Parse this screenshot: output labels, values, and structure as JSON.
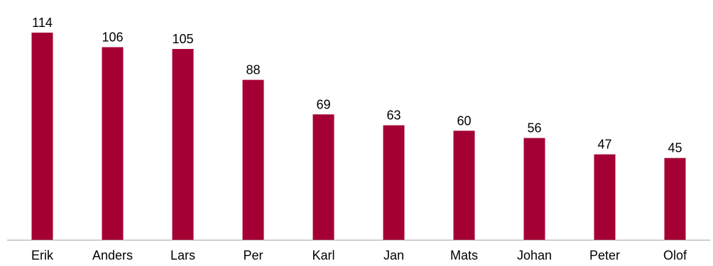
{
  "chart_data": {
    "type": "bar",
    "categories": [
      "Erik",
      "Anders",
      "Lars",
      "Per",
      "Karl",
      "Jan",
      "Mats",
      "Johan",
      "Peter",
      "Olof"
    ],
    "values": [
      114,
      106,
      105,
      88,
      69,
      63,
      60,
      56,
      47,
      45
    ],
    "title": "",
    "xlabel": "",
    "ylabel": "",
    "ylim": [
      0,
      114
    ],
    "grid": false,
    "data_labels": true,
    "bar_color": "#A50034",
    "axis_color": "#A6A6A6"
  }
}
